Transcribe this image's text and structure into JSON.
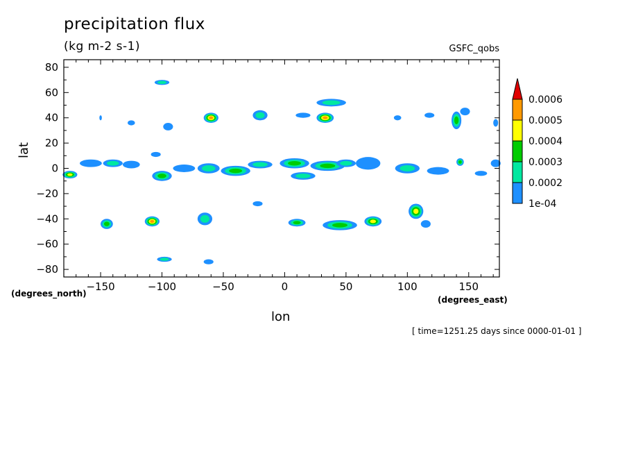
{
  "chart_data": {
    "type": "contour-map",
    "title": "precipitation flux",
    "units": "(kg m-2 s-1)",
    "source": "GSFC_qobs",
    "xlabel": "lon",
    "ylabel": "lat",
    "x_units_label": "(degrees_east)",
    "y_units_label": "(degrees_north)",
    "time_note": "[ time=1251.25 days since 0000-01-01 ]",
    "xlim": [
      -180,
      175
    ],
    "ylim": [
      -86,
      86
    ],
    "x_ticks": [
      -150,
      -100,
      -50,
      0,
      50,
      100,
      150
    ],
    "x_tick_labels": [
      "−150",
      "−100",
      "−50",
      "0",
      "50",
      "100",
      "150"
    ],
    "y_ticks": [
      -80,
      -60,
      -40,
      -20,
      0,
      20,
      40,
      60,
      80
    ],
    "y_tick_labels": [
      "−80",
      "−60",
      "−40",
      "−20",
      "0",
      "20",
      "40",
      "60",
      "80"
    ],
    "colorbar": {
      "levels": [
        "1e-04",
        "0.0002",
        "0.0003",
        "0.0004",
        "0.0005",
        "0.0006"
      ],
      "colors": [
        "#1e90ff",
        "#00e8a0",
        "#00cc00",
        "#ffff00",
        "#ff9900",
        "#e00000"
      ]
    },
    "blobs": [
      {
        "lon": -175,
        "lat": -5,
        "rx": 6,
        "ry": 3,
        "level": 4
      },
      {
        "lon": -158,
        "lat": 4,
        "rx": 9,
        "ry": 3,
        "level": 1
      },
      {
        "lon": -140,
        "lat": 4,
        "rx": 8,
        "ry": 3,
        "level": 2
      },
      {
        "lon": -125,
        "lat": 3,
        "rx": 7,
        "ry": 3,
        "level": 1
      },
      {
        "lon": -100,
        "lat": -6,
        "rx": 8,
        "ry": 4,
        "level": 3
      },
      {
        "lon": -105,
        "lat": 11,
        "rx": 4,
        "ry": 2,
        "level": 1
      },
      {
        "lon": -82,
        "lat": 0,
        "rx": 9,
        "ry": 3,
        "level": 1
      },
      {
        "lon": -62,
        "lat": 0,
        "rx": 9,
        "ry": 4,
        "level": 2
      },
      {
        "lon": -40,
        "lat": -2,
        "rx": 12,
        "ry": 4,
        "level": 3
      },
      {
        "lon": -20,
        "lat": 3,
        "rx": 10,
        "ry": 3,
        "level": 2
      },
      {
        "lon": 8,
        "lat": 4,
        "rx": 12,
        "ry": 4,
        "level": 3
      },
      {
        "lon": 15,
        "lat": -6,
        "rx": 10,
        "ry": 3,
        "level": 2
      },
      {
        "lon": 35,
        "lat": 2,
        "rx": 14,
        "ry": 4,
        "level": 3
      },
      {
        "lon": 50,
        "lat": 4,
        "rx": 8,
        "ry": 3,
        "level": 2
      },
      {
        "lon": 68,
        "lat": 4,
        "rx": 10,
        "ry": 5,
        "level": 1
      },
      {
        "lon": 100,
        "lat": 0,
        "rx": 10,
        "ry": 4,
        "level": 2
      },
      {
        "lon": 125,
        "lat": -2,
        "rx": 9,
        "ry": 3,
        "level": 1
      },
      {
        "lon": 143,
        "lat": 5,
        "rx": 3,
        "ry": 3,
        "level": 3
      },
      {
        "lon": 160,
        "lat": -4,
        "rx": 5,
        "ry": 2,
        "level": 1
      },
      {
        "lon": 172,
        "lat": 4,
        "rx": 4,
        "ry": 3,
        "level": 1
      },
      {
        "lon": -60,
        "lat": 40,
        "rx": 6,
        "ry": 4,
        "level": 5
      },
      {
        "lon": -20,
        "lat": 42,
        "rx": 6,
        "ry": 4,
        "level": 2
      },
      {
        "lon": 33,
        "lat": 40,
        "rx": 7,
        "ry": 4,
        "level": 5
      },
      {
        "lon": 38,
        "lat": 52,
        "rx": 12,
        "ry": 3,
        "level": 2
      },
      {
        "lon": 15,
        "lat": 42,
        "rx": 6,
        "ry": 2,
        "level": 1
      },
      {
        "lon": 140,
        "lat": 38,
        "rx": 4,
        "ry": 7,
        "level": 3
      },
      {
        "lon": 147,
        "lat": 45,
        "rx": 4,
        "ry": 3,
        "level": 1
      },
      {
        "lon": 118,
        "lat": 42,
        "rx": 4,
        "ry": 2,
        "level": 1
      },
      {
        "lon": 92,
        "lat": 40,
        "rx": 3,
        "ry": 2,
        "level": 1
      },
      {
        "lon": -100,
        "lat": 68,
        "rx": 6,
        "ry": 2,
        "level": 2
      },
      {
        "lon": -95,
        "lat": 33,
        "rx": 4,
        "ry": 3,
        "level": 1
      },
      {
        "lon": -125,
        "lat": 36,
        "rx": 3,
        "ry": 2,
        "level": 1
      },
      {
        "lon": -150,
        "lat": 40,
        "rx": 1,
        "ry": 2,
        "level": 1
      },
      {
        "lon": 172,
        "lat": 36,
        "rx": 2,
        "ry": 3,
        "level": 1
      },
      {
        "lon": -108,
        "lat": -42,
        "rx": 6,
        "ry": 4,
        "level": 5
      },
      {
        "lon": -145,
        "lat": -44,
        "rx": 5,
        "ry": 4,
        "level": 3
      },
      {
        "lon": -65,
        "lat": -40,
        "rx": 6,
        "ry": 5,
        "level": 2
      },
      {
        "lon": 10,
        "lat": -43,
        "rx": 7,
        "ry": 3,
        "level": 3
      },
      {
        "lon": 45,
        "lat": -45,
        "rx": 14,
        "ry": 4,
        "level": 3
      },
      {
        "lon": 72,
        "lat": -42,
        "rx": 7,
        "ry": 4,
        "level": 4
      },
      {
        "lon": 107,
        "lat": -34,
        "rx": 6,
        "ry": 6,
        "level": 4
      },
      {
        "lon": 115,
        "lat": -44,
        "rx": 4,
        "ry": 3,
        "level": 1
      },
      {
        "lon": -22,
        "lat": -28,
        "rx": 4,
        "ry": 2,
        "level": 1
      },
      {
        "lon": -98,
        "lat": -72,
        "rx": 6,
        "ry": 2,
        "level": 2
      },
      {
        "lon": -62,
        "lat": -74,
        "rx": 4,
        "ry": 2,
        "level": 1
      }
    ]
  }
}
